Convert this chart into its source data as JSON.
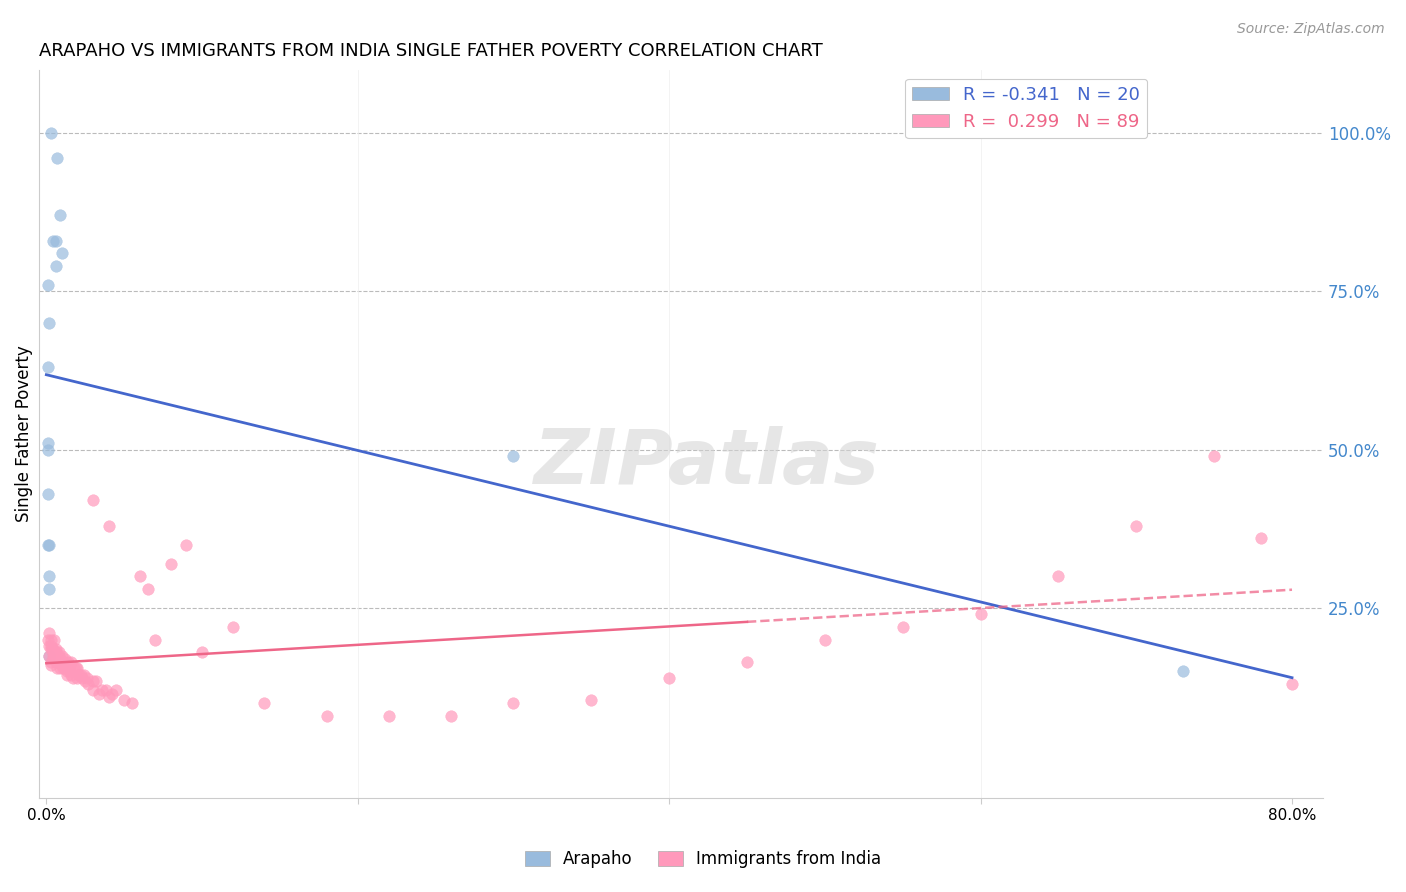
{
  "title": "ARAPAHO VS IMMIGRANTS FROM INDIA SINGLE FATHER POVERTY CORRELATION CHART",
  "source": "Source: ZipAtlas.com",
  "ylabel": "Single Father Poverty",
  "ytick_labels": [
    "100.0%",
    "75.0%",
    "50.0%",
    "25.0%"
  ],
  "ytick_values": [
    1.0,
    0.75,
    0.5,
    0.25
  ],
  "xlim": [
    -0.005,
    0.82
  ],
  "ylim": [
    -0.05,
    1.1
  ],
  "legend_blue_R": "-0.341",
  "legend_blue_N": "20",
  "legend_pink_R": "0.299",
  "legend_pink_N": "89",
  "blue_color": "#99BBDD",
  "pink_color": "#FF99BB",
  "blue_line_color": "#4466CC",
  "pink_line_color": "#EE6688",
  "watermark": "ZIPatlas",
  "arapaho_x": [
    0.003,
    0.007,
    0.009,
    0.004,
    0.006,
    0.01,
    0.006,
    0.001,
    0.002,
    0.001,
    0.3,
    0.001,
    0.001,
    0.001,
    0.001,
    0.002,
    0.002,
    0.002,
    0.73,
    0.002
  ],
  "arapaho_y": [
    1.0,
    0.96,
    0.87,
    0.83,
    0.83,
    0.81,
    0.79,
    0.76,
    0.7,
    0.63,
    0.49,
    0.51,
    0.5,
    0.43,
    0.35,
    0.35,
    0.3,
    0.175,
    0.15,
    0.28
  ],
  "india_x": [
    0.001,
    0.002,
    0.002,
    0.002,
    0.003,
    0.003,
    0.003,
    0.003,
    0.003,
    0.004,
    0.004,
    0.004,
    0.005,
    0.005,
    0.005,
    0.006,
    0.006,
    0.006,
    0.007,
    0.007,
    0.007,
    0.008,
    0.008,
    0.008,
    0.009,
    0.009,
    0.01,
    0.01,
    0.01,
    0.011,
    0.011,
    0.012,
    0.012,
    0.013,
    0.013,
    0.014,
    0.014,
    0.015,
    0.015,
    0.016,
    0.016,
    0.017,
    0.018,
    0.019,
    0.02,
    0.02,
    0.021,
    0.022,
    0.023,
    0.024,
    0.025,
    0.026,
    0.027,
    0.03,
    0.03,
    0.032,
    0.034,
    0.036,
    0.038,
    0.04,
    0.042,
    0.045,
    0.05,
    0.055,
    0.06,
    0.065,
    0.07,
    0.08,
    0.09,
    0.1,
    0.12,
    0.14,
    0.18,
    0.22,
    0.26,
    0.3,
    0.35,
    0.4,
    0.45,
    0.5,
    0.55,
    0.6,
    0.65,
    0.7,
    0.75,
    0.78,
    0.8,
    0.03,
    0.04
  ],
  "india_y": [
    0.2,
    0.19,
    0.21,
    0.175,
    0.185,
    0.165,
    0.19,
    0.2,
    0.16,
    0.175,
    0.185,
    0.18,
    0.17,
    0.2,
    0.175,
    0.165,
    0.18,
    0.185,
    0.165,
    0.175,
    0.155,
    0.165,
    0.175,
    0.18,
    0.155,
    0.17,
    0.175,
    0.165,
    0.16,
    0.155,
    0.165,
    0.17,
    0.155,
    0.15,
    0.145,
    0.165,
    0.155,
    0.16,
    0.15,
    0.165,
    0.145,
    0.14,
    0.155,
    0.155,
    0.14,
    0.155,
    0.145,
    0.145,
    0.14,
    0.145,
    0.135,
    0.14,
    0.13,
    0.135,
    0.12,
    0.135,
    0.115,
    0.12,
    0.12,
    0.11,
    0.115,
    0.12,
    0.105,
    0.1,
    0.3,
    0.28,
    0.2,
    0.32,
    0.35,
    0.18,
    0.22,
    0.1,
    0.08,
    0.08,
    0.08,
    0.1,
    0.105,
    0.14,
    0.165,
    0.2,
    0.22,
    0.24,
    0.3,
    0.38,
    0.49,
    0.36,
    0.13,
    0.42,
    0.38
  ]
}
